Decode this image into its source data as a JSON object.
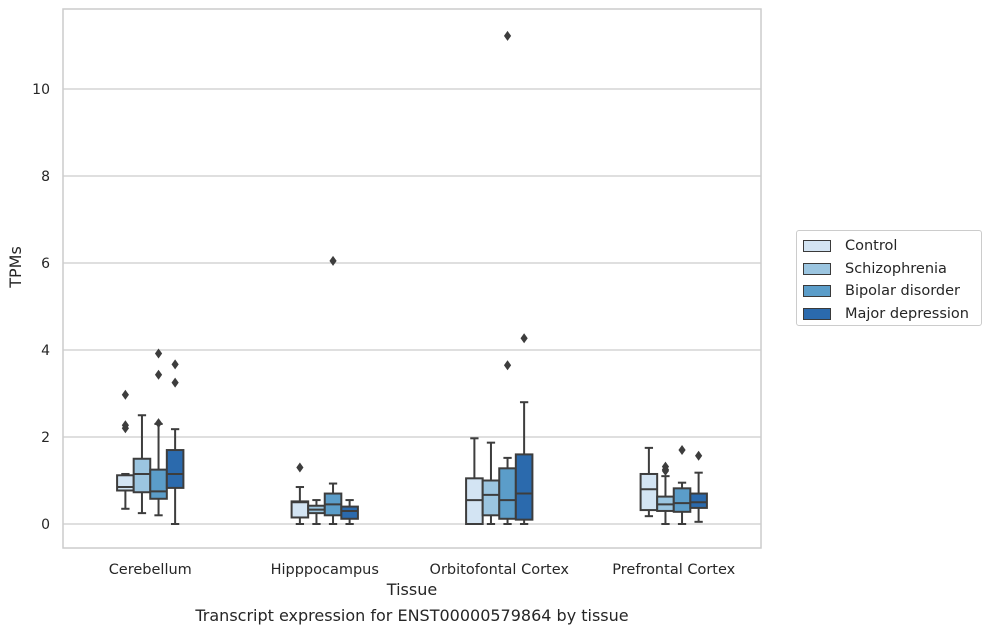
{
  "chart_data": {
    "type": "box",
    "xlabel": "Tissue",
    "ylabel": "TPMs",
    "caption": "Transcript expression for ENST00000579864 by tissue",
    "ylim": [
      -0.55,
      11.8
    ],
    "yticks": [
      0,
      2,
      4,
      6,
      8,
      10
    ],
    "grid": "horizontal",
    "legend_position": "right",
    "categories": [
      "Cerebellum",
      "Hipppocampus",
      "Orbitofontal Cortex",
      "Prefrontal Cortex"
    ],
    "series": [
      {
        "name": "Control",
        "color": "#d3e4f3",
        "boxes": [
          {
            "whisker_low": 0.35,
            "q1": 0.77,
            "median": 0.85,
            "q3": 1.12,
            "whisker_high": 1.15,
            "outliers": [
              2.97,
              2.27,
              2.2
            ]
          },
          {
            "whisker_low": 0.0,
            "q1": 0.15,
            "median": 0.5,
            "q3": 0.52,
            "whisker_high": 0.85,
            "outliers": [
              1.3
            ]
          },
          {
            "whisker_low": 0.0,
            "q1": 0.0,
            "median": 0.55,
            "q3": 1.05,
            "whisker_high": 1.97,
            "outliers": []
          },
          {
            "whisker_low": 0.18,
            "q1": 0.32,
            "median": 0.8,
            "q3": 1.15,
            "whisker_high": 1.75,
            "outliers": []
          }
        ]
      },
      {
        "name": "Schizophrenia",
        "color": "#9bc5e0",
        "boxes": [
          {
            "whisker_low": 0.25,
            "q1": 0.73,
            "median": 1.15,
            "q3": 1.5,
            "whisker_high": 2.5,
            "outliers": []
          },
          {
            "whisker_low": 0.0,
            "q1": 0.25,
            "median": 0.33,
            "q3": 0.42,
            "whisker_high": 0.55,
            "outliers": []
          },
          {
            "whisker_low": 0.0,
            "q1": 0.2,
            "median": 0.67,
            "q3": 1.0,
            "whisker_high": 1.87,
            "outliers": []
          },
          {
            "whisker_low": 0.0,
            "q1": 0.3,
            "median": 0.45,
            "q3": 0.63,
            "whisker_high": 1.1,
            "outliers": [
              1.32,
              1.25,
              1.22
            ]
          }
        ]
      },
      {
        "name": "Bipolar disorder",
        "color": "#5b9dc9",
        "boxes": [
          {
            "whisker_low": 0.2,
            "q1": 0.58,
            "median": 0.75,
            "q3": 1.25,
            "whisker_high": 2.3,
            "outliers": [
              3.92,
              3.43,
              2.32
            ]
          },
          {
            "whisker_low": 0.0,
            "q1": 0.2,
            "median": 0.45,
            "q3": 0.7,
            "whisker_high": 0.93,
            "outliers": [
              6.05
            ]
          },
          {
            "whisker_low": 0.0,
            "q1": 0.12,
            "median": 0.55,
            "q3": 1.28,
            "whisker_high": 1.52,
            "outliers": [
              11.22,
              3.65
            ]
          },
          {
            "whisker_low": 0.0,
            "q1": 0.28,
            "median": 0.48,
            "q3": 0.82,
            "whisker_high": 0.95,
            "outliers": [
              1.7
            ]
          }
        ]
      },
      {
        "name": "Major depression",
        "color": "#2b6aad",
        "boxes": [
          {
            "whisker_low": 0.0,
            "q1": 0.83,
            "median": 1.15,
            "q3": 1.7,
            "whisker_high": 2.18,
            "outliers": [
              3.67,
              3.25
            ]
          },
          {
            "whisker_low": 0.0,
            "q1": 0.12,
            "median": 0.3,
            "q3": 0.4,
            "whisker_high": 0.55,
            "outliers": []
          },
          {
            "whisker_low": 0.0,
            "q1": 0.1,
            "median": 0.7,
            "q3": 1.6,
            "whisker_high": 2.8,
            "outliers": [
              4.27
            ]
          },
          {
            "whisker_low": 0.05,
            "q1": 0.37,
            "median": 0.5,
            "q3": 0.7,
            "whisker_high": 1.18,
            "outliers": [
              1.57
            ]
          }
        ]
      }
    ]
  }
}
